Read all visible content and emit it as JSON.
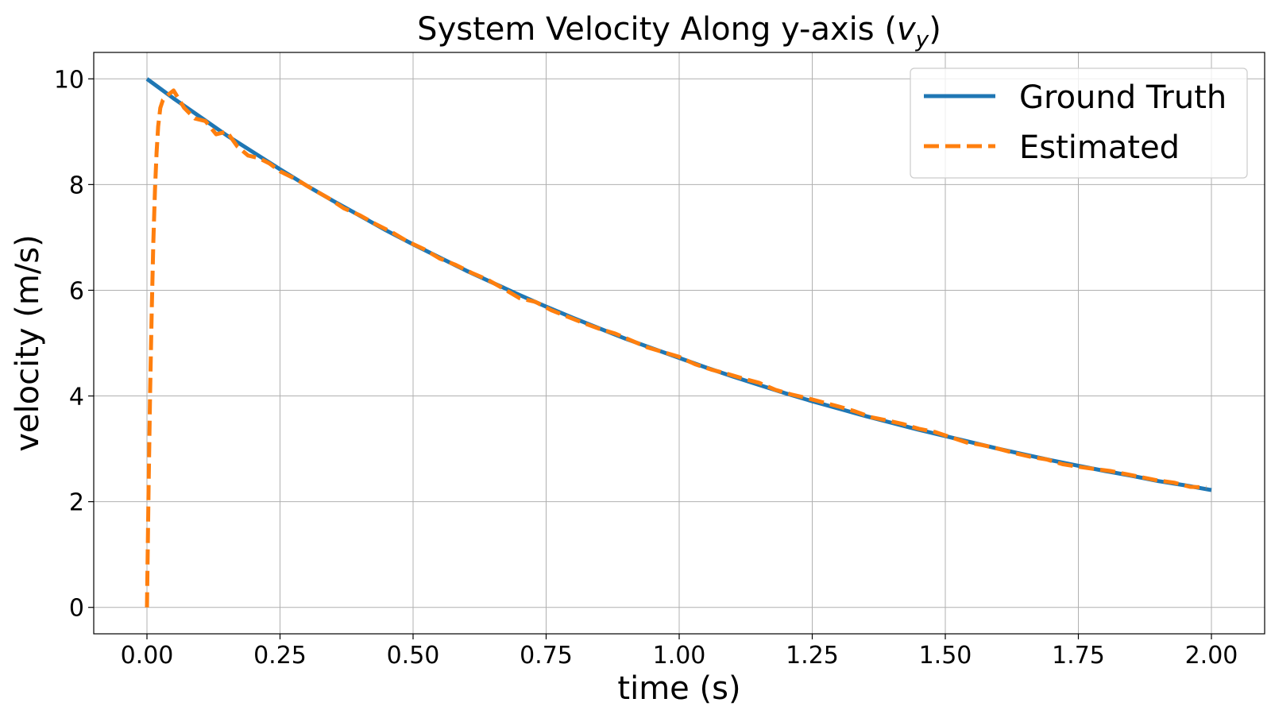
{
  "chart_data": {
    "type": "line",
    "title": {
      "prefix": "System Velocity Along y-axis (",
      "var": "v",
      "sub": "y",
      "suffix": ")"
    },
    "xlabel": "time (s)",
    "ylabel": "velocity (m/s)",
    "xlim": [
      -0.1,
      2.1
    ],
    "ylim": [
      -0.5,
      10.5
    ],
    "xticks": [
      0.0,
      0.25,
      0.5,
      0.75,
      1.0,
      1.25,
      1.5,
      1.75,
      2.0
    ],
    "xtick_labels": [
      "0.00",
      "0.25",
      "0.50",
      "0.75",
      "1.00",
      "1.25",
      "1.50",
      "1.75",
      "2.00"
    ],
    "yticks": [
      0,
      2,
      4,
      6,
      8,
      10
    ],
    "ytick_labels": [
      "0",
      "2",
      "4",
      "6",
      "8",
      "10"
    ],
    "grid": true,
    "legend_position": "top-right",
    "series": [
      {
        "name": "Ground Truth",
        "color": "#1f77b4",
        "style": "solid",
        "x": [
          0.0,
          0.05,
          0.1,
          0.15,
          0.2,
          0.25,
          0.3,
          0.35,
          0.4,
          0.45,
          0.5,
          0.55,
          0.6,
          0.65,
          0.7,
          0.75,
          0.8,
          0.85,
          0.9,
          0.95,
          1.0,
          1.05,
          1.1,
          1.15,
          1.2,
          1.25,
          1.3,
          1.35,
          1.4,
          1.45,
          1.5,
          1.55,
          1.6,
          1.65,
          1.7,
          1.75,
          1.8,
          1.85,
          1.9,
          1.95,
          2.0
        ],
        "y": [
          10.0,
          9.63,
          9.28,
          8.93,
          8.61,
          8.29,
          7.98,
          7.69,
          7.41,
          7.13,
          6.87,
          6.62,
          6.37,
          6.14,
          5.91,
          5.69,
          5.48,
          5.28,
          5.08,
          4.9,
          4.72,
          4.54,
          4.37,
          4.21,
          4.05,
          3.9,
          3.76,
          3.62,
          3.49,
          3.36,
          3.24,
          3.12,
          3.0,
          2.89,
          2.78,
          2.68,
          2.58,
          2.49,
          2.39,
          2.31,
          2.22
        ]
      },
      {
        "name": "Estimated",
        "color": "#ff7f0e",
        "style": "dashed",
        "x": [
          0.0,
          0.003,
          0.006,
          0.009,
          0.012,
          0.015,
          0.018,
          0.021,
          0.025,
          0.03,
          0.04,
          0.05,
          0.07,
          0.09,
          0.11,
          0.13,
          0.15,
          0.17,
          0.19,
          0.21,
          0.23,
          0.25,
          0.28,
          0.31,
          0.34,
          0.37,
          0.4,
          0.43,
          0.46,
          0.49,
          0.52,
          0.55,
          0.58,
          0.61,
          0.64,
          0.67,
          0.7,
          0.73,
          0.76,
          0.79,
          0.82,
          0.85,
          0.88,
          0.91,
          0.94,
          0.97,
          1.0,
          1.03,
          1.06,
          1.09,
          1.12,
          1.15,
          1.18,
          1.21,
          1.24,
          1.27,
          1.3,
          1.33,
          1.36,
          1.39,
          1.42,
          1.45,
          1.48,
          1.51,
          1.54,
          1.57,
          1.6,
          1.63,
          1.66,
          1.69,
          1.72,
          1.75,
          1.78,
          1.81,
          1.84,
          1.87,
          1.9,
          1.93,
          1.96,
          1.99
        ],
        "y": [
          0.0,
          2.2,
          4.1,
          5.6,
          6.9,
          7.9,
          8.6,
          9.1,
          9.45,
          9.6,
          9.7,
          9.78,
          9.45,
          9.25,
          9.2,
          8.95,
          9.0,
          8.72,
          8.55,
          8.5,
          8.4,
          8.25,
          8.1,
          7.92,
          7.75,
          7.55,
          7.42,
          7.25,
          7.1,
          6.92,
          6.78,
          6.6,
          6.48,
          6.33,
          6.2,
          6.03,
          5.85,
          5.78,
          5.62,
          5.5,
          5.38,
          5.27,
          5.18,
          5.05,
          4.92,
          4.83,
          4.74,
          4.6,
          4.5,
          4.42,
          4.33,
          4.25,
          4.12,
          4.03,
          3.96,
          3.88,
          3.8,
          3.71,
          3.6,
          3.54,
          3.47,
          3.38,
          3.32,
          3.22,
          3.12,
          3.07,
          3.0,
          2.92,
          2.85,
          2.8,
          2.71,
          2.66,
          2.62,
          2.58,
          2.52,
          2.46,
          2.4,
          2.36,
          2.28,
          2.27
        ]
      }
    ]
  }
}
